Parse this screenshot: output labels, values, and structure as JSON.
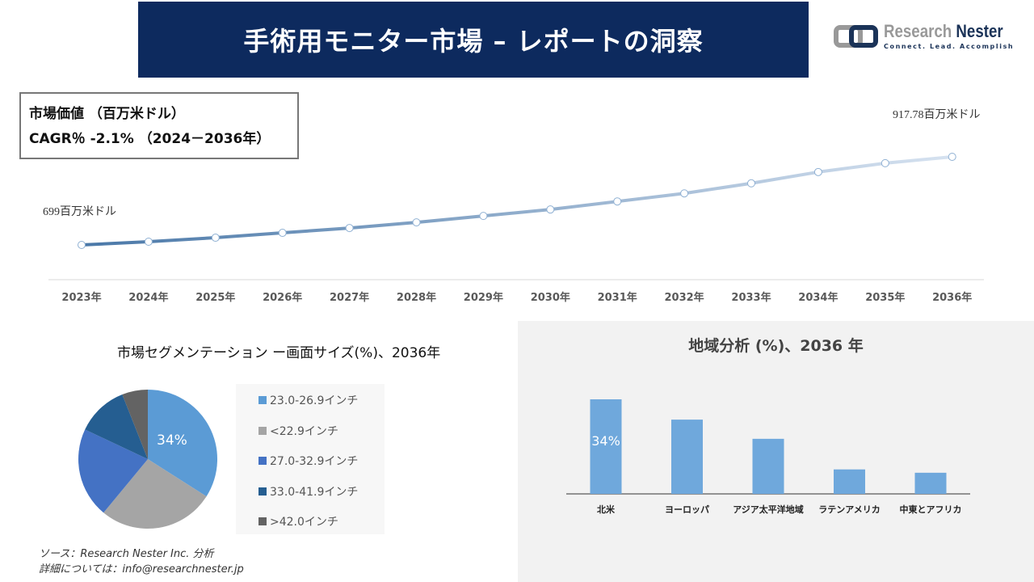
{
  "header": {
    "title": "手術用モニター市場 – レポートの洞察"
  },
  "logo": {
    "name_part1": "Research",
    "name_part2": "Nester",
    "tagline": "Connect. Lead. Accomplish"
  },
  "infobox": {
    "line1": "市場価値 （百万米ドル）",
    "line2": "CAGR％ -2.1% （2024－2036年）"
  },
  "footer": {
    "source": "ソース：Research Nester Inc. 分析",
    "contact": "詳細については：info@researchnester.jp"
  },
  "chart_data": [
    {
      "type": "line",
      "categories": [
        "2023年",
        "2024年",
        "2025年",
        "2026年",
        "2027年",
        "2028年",
        "2029年",
        "2030年",
        "2031年",
        "2032年",
        "2033年",
        "2034年",
        "2035年",
        "2036年"
      ],
      "values": [
        699,
        707,
        717,
        729,
        741,
        755,
        771,
        787,
        807,
        827,
        852,
        880,
        902,
        917.78
      ],
      "annotations": {
        "start": "699百万米ドル",
        "end": "917.78百万米ドル"
      },
      "grid": false
    },
    {
      "type": "pie",
      "title": "市場セグメンテーション ー画面サイズ(%)、2036年",
      "categories": [
        "23.0-26.9インチ",
        "<22.9インチ",
        "27.0-32.9インチ",
        "33.0-41.9インチ",
        ">42.0インチ"
      ],
      "values": [
        34,
        27,
        21,
        12,
        6
      ],
      "data_labels": [
        "34%",
        "",
        "",
        "",
        ""
      ],
      "colors": [
        "#5b9bd5",
        "#a5a5a5",
        "#4472c4",
        "#255e91",
        "#636363"
      ],
      "legend": "right"
    },
    {
      "type": "bar",
      "title": "地域分析 (%)、2036 年",
      "categories": [
        "北米",
        "ヨーロッパ",
        "アジア太平洋地域",
        "ラテンアメリカ",
        "中東とアフリカ"
      ],
      "values": [
        34,
        26.7,
        19.8,
        8.8,
        7.6
      ],
      "data_labels": [
        "34%",
        "",
        "",
        "",
        ""
      ],
      "color": "#6fa8dc"
    }
  ]
}
